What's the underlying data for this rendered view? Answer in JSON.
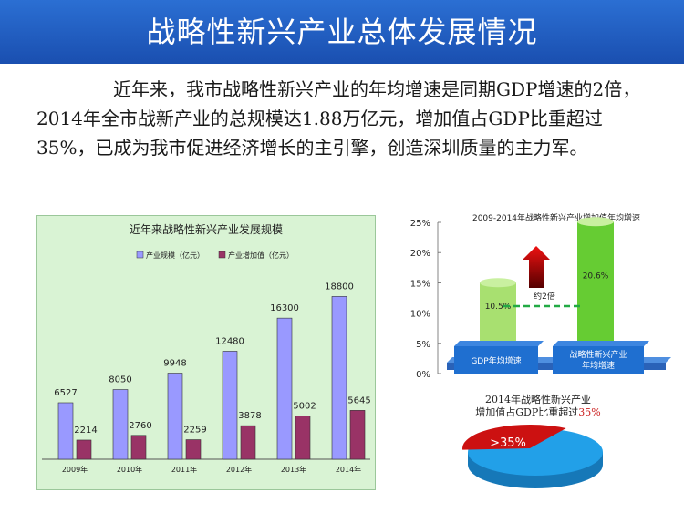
{
  "title": "战略性新兴产业总体发展情况",
  "intro": "近年来，我市战略性新兴产业的年均增速是同期GDP增速的2倍，2014年全市战新产业的总规模达1.88万亿元，增加值占GDP比重超过35%，已成为我市促进经济增长的主引擎，创造深圳质量的主力军。",
  "colors": {
    "banner": "#1e5bc4",
    "scale": "#9999ff",
    "value_added": "#993366",
    "panel_bg": "#d9f3d4",
    "cyl_small": "#a8e070",
    "cyl_large": "#66cc33",
    "block": "#1f6fd0",
    "pie_blue": "#22a0e8",
    "pie_red": "#cc1111"
  },
  "chart_data": [
    {
      "type": "bar",
      "title": "近年来战略性新兴产业发展规模",
      "categories": [
        "2009年",
        "2010年",
        "2011年",
        "2012年",
        "2013年",
        "2014年"
      ],
      "series": [
        {
          "name": "产业规模（亿元）",
          "values": [
            6527,
            8050,
            9948,
            12480,
            16300,
            18800
          ]
        },
        {
          "name": "产业增加值（亿元）",
          "values": [
            2214,
            2760,
            2259,
            3878,
            5002,
            5645
          ]
        }
      ],
      "ylim": [
        0,
        20000
      ],
      "legend": "top-left",
      "grid": false
    },
    {
      "type": "bar",
      "title": "2009-2014年战略性新兴产业增加值年均增速",
      "categories": [
        "GDP年均增速",
        "战略性新兴产业年均增速"
      ],
      "values": [
        10.5,
        20.6
      ],
      "value_labels": [
        "10.5%",
        "20.6%"
      ],
      "yticks": [
        "0%",
        "5%",
        "10%",
        "15%",
        "20%",
        "25%"
      ],
      "ylim": [
        0,
        25
      ],
      "annotation": "约2倍"
    },
    {
      "type": "pie",
      "title_line1": "2014年战略性新兴产业",
      "title_line2_prefix": "增加值占GDP比重超过",
      "title_line2_highlight": "35%",
      "values": [
        35,
        65
      ],
      "label": ">35%"
    }
  ]
}
